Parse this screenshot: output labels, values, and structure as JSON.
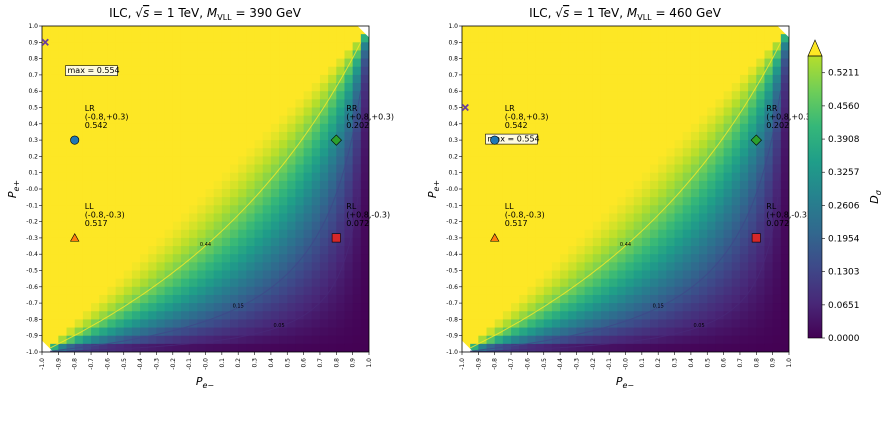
{
  "chart_data": {
    "type": "heatmap",
    "panels": [
      {
        "title": "ILC, √s = 1 TeV, M_VLL = 390 GeV",
        "title_parts": {
          "prefix": "ILC, ",
          "sqrt_var": "s",
          "mid": " = 1 TeV, ",
          "mass_var": "M",
          "mass_sub": "VLL",
          "suffix": " = 390 GeV"
        },
        "xlabel": "P",
        "xlabel_sub": "e−",
        "ylabel": "P",
        "ylabel_sub": "e+",
        "max_label": "max = 0.554",
        "max_point": {
          "x": -0.98,
          "y": 0.9
        },
        "contour_labels": [
          "0.44",
          "0.15",
          "0.05"
        ],
        "points": [
          {
            "name": "LR",
            "coords": "(-0.8,+0.3)",
            "value": "0.542",
            "x": -0.8,
            "y": 0.3,
            "marker": "circle",
            "color": "#1f77b4"
          },
          {
            "name": "RR",
            "coords": "(+0.8,+0.3)",
            "value": "0.202",
            "x": 0.8,
            "y": 0.3,
            "marker": "diamond",
            "color": "#2ca02c"
          },
          {
            "name": "LL",
            "coords": "(-0.8,-0.3)",
            "value": "0.517",
            "x": -0.8,
            "y": -0.3,
            "marker": "triangle",
            "color": "#ff7f0e"
          },
          {
            "name": "RL",
            "coords": "(+0.8,-0.3)",
            "value": "0.072",
            "x": 0.8,
            "y": -0.3,
            "marker": "square",
            "color": "#d62728"
          }
        ]
      },
      {
        "title": "ILC, √s = 1 TeV, M_VLL = 460 GeV",
        "title_parts": {
          "prefix": "ILC, ",
          "sqrt_var": "s",
          "mid": " = 1 TeV, ",
          "mass_var": "M",
          "mass_sub": "VLL",
          "suffix": " = 460 GeV"
        },
        "xlabel": "P",
        "xlabel_sub": "e−",
        "ylabel": "P",
        "ylabel_sub": "e+",
        "max_label": "max = 0.554",
        "max_point": {
          "x": -0.98,
          "y": 0.5
        },
        "contour_labels": [
          "0.44",
          "0.15",
          "0.05"
        ],
        "points": [
          {
            "name": "LR",
            "coords": "(-0.8,+0.3)",
            "value": "0.542",
            "x": -0.8,
            "y": 0.3,
            "marker": "circle",
            "color": "#1f77b4"
          },
          {
            "name": "RR",
            "coords": "(+0.8,+0.3)",
            "value": "0.202",
            "x": 0.8,
            "y": 0.3,
            "marker": "diamond",
            "color": "#2ca02c"
          },
          {
            "name": "LL",
            "coords": "(-0.8,-0.3)",
            "value": "0.517",
            "x": -0.8,
            "y": -0.3,
            "marker": "triangle",
            "color": "#ff7f0e"
          },
          {
            "name": "RL",
            "coords": "(+0.8,-0.3)",
            "value": "0.072",
            "x": 0.8,
            "y": -0.3,
            "marker": "square",
            "color": "#d62728"
          }
        ]
      }
    ],
    "xlim": [
      -1.0,
      1.0
    ],
    "ylim": [
      -1.0,
      1.0
    ],
    "ticks": [
      "-1.0",
      "-0.9",
      "-0.8",
      "-0.7",
      "-0.6",
      "-0.5",
      "-0.4",
      "-0.3",
      "-0.2",
      "-0.1",
      "-0.0",
      "0.1",
      "0.2",
      "0.3",
      "0.4",
      "0.5",
      "0.6",
      "0.7",
      "0.8",
      "0.9",
      "1.0"
    ],
    "colorbar": {
      "label": "D",
      "label_sub": "σ",
      "ticks": [
        "0.0000",
        "0.0651",
        "0.1303",
        "0.1954",
        "0.2606",
        "0.3257",
        "0.3908",
        "0.4560",
        "0.5211"
      ],
      "colormap": "viridis",
      "range": [
        0,
        0.554
      ],
      "extend": "max"
    }
  }
}
